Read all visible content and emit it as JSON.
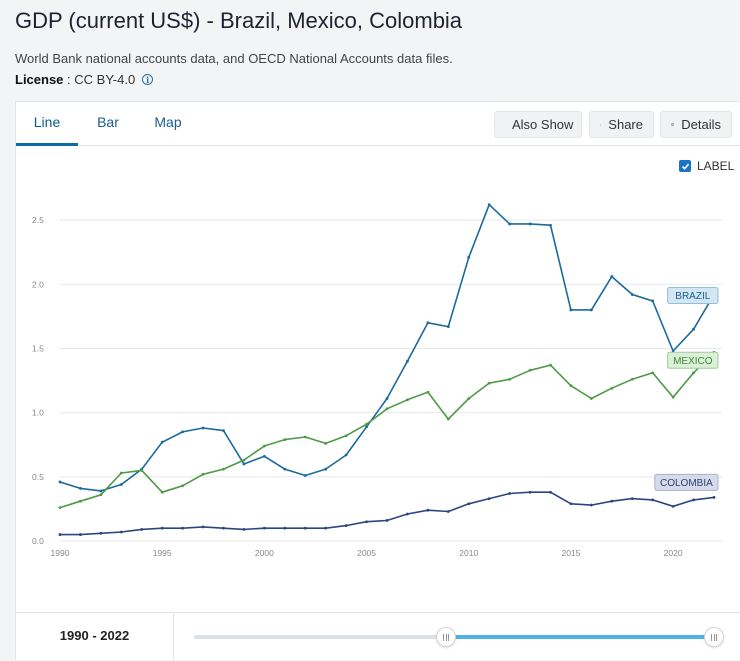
{
  "header": {
    "title": "GDP (current US$) - Brazil, Mexico, Colombia",
    "subtitle": "World Bank national accounts data, and OECD National Accounts data files.",
    "license_key": "License",
    "license_sep": " : ",
    "license_value": "CC BY-4.0",
    "info_icon": "info-icon"
  },
  "tabs": [
    {
      "label": "Line",
      "active": true
    },
    {
      "label": "Bar",
      "active": false
    },
    {
      "label": "Map",
      "active": false
    }
  ],
  "toolbar": {
    "also_show_label": "Also Show",
    "share_label": "Share",
    "details_label": "Details"
  },
  "label_toggle": {
    "text": "LABEL",
    "checked": true
  },
  "range": {
    "label": "1990 - 2022",
    "min_year": 1960,
    "max_year": 2022,
    "start_year": 1990,
    "end_year": 2022
  },
  "chart_data": {
    "type": "line",
    "title": "",
    "xlabel": "",
    "ylabel": "",
    "ylim": [
      0,
      2.75
    ],
    "xlim": [
      1990,
      2022
    ],
    "y_ticks": [
      "0.0",
      "0.5",
      "1.0",
      "1.5",
      "2.0",
      "2.5"
    ],
    "x_ticks": [
      "1990",
      "1995",
      "2000",
      "2005",
      "2010",
      "2015",
      "2020"
    ],
    "grid": "horizontal",
    "x": [
      1990,
      1991,
      1992,
      1993,
      1994,
      1995,
      1996,
      1997,
      1998,
      1999,
      2000,
      2001,
      2002,
      2003,
      2004,
      2005,
      2006,
      2007,
      2008,
      2009,
      2010,
      2011,
      2012,
      2013,
      2014,
      2015,
      2016,
      2017,
      2018,
      2019,
      2020,
      2021,
      2022
    ],
    "series": [
      {
        "name": "BRAZIL",
        "color": "#1b6a9b",
        "label_bg": "#d2e6f3",
        "label_border": "#8ebfdc",
        "label_color": "#1b5f8f",
        "values": [
          0.46,
          0.41,
          0.39,
          0.44,
          0.56,
          0.77,
          0.85,
          0.88,
          0.86,
          0.6,
          0.66,
          0.56,
          0.51,
          0.56,
          0.67,
          0.89,
          1.11,
          1.4,
          1.7,
          1.67,
          2.21,
          2.62,
          2.47,
          2.47,
          2.46,
          1.8,
          1.8,
          2.06,
          1.92,
          1.87,
          1.48,
          1.65,
          1.92
        ]
      },
      {
        "name": "MEXICO",
        "color": "#4e9a47",
        "label_bg": "#dcefd8",
        "label_border": "#9fcb97",
        "label_color": "#3f8a39",
        "values": [
          0.26,
          0.31,
          0.36,
          0.53,
          0.55,
          0.38,
          0.43,
          0.52,
          0.56,
          0.63,
          0.74,
          0.79,
          0.81,
          0.76,
          0.82,
          0.91,
          1.03,
          1.1,
          1.16,
          0.95,
          1.11,
          1.23,
          1.26,
          1.33,
          1.37,
          1.21,
          1.11,
          1.19,
          1.26,
          1.31,
          1.12,
          1.31,
          1.47
        ]
      },
      {
        "name": "COLOMBIA",
        "color": "#2b467f",
        "label_bg": "#d7dbe9",
        "label_border": "#a9b1cd",
        "label_color": "#2b3f74",
        "values": [
          0.05,
          0.05,
          0.06,
          0.07,
          0.09,
          0.1,
          0.1,
          0.11,
          0.1,
          0.09,
          0.1,
          0.1,
          0.1,
          0.1,
          0.12,
          0.15,
          0.16,
          0.21,
          0.24,
          0.23,
          0.29,
          0.33,
          0.37,
          0.38,
          0.38,
          0.29,
          0.28,
          0.31,
          0.33,
          0.32,
          0.27,
          0.32,
          0.34
        ]
      }
    ]
  }
}
